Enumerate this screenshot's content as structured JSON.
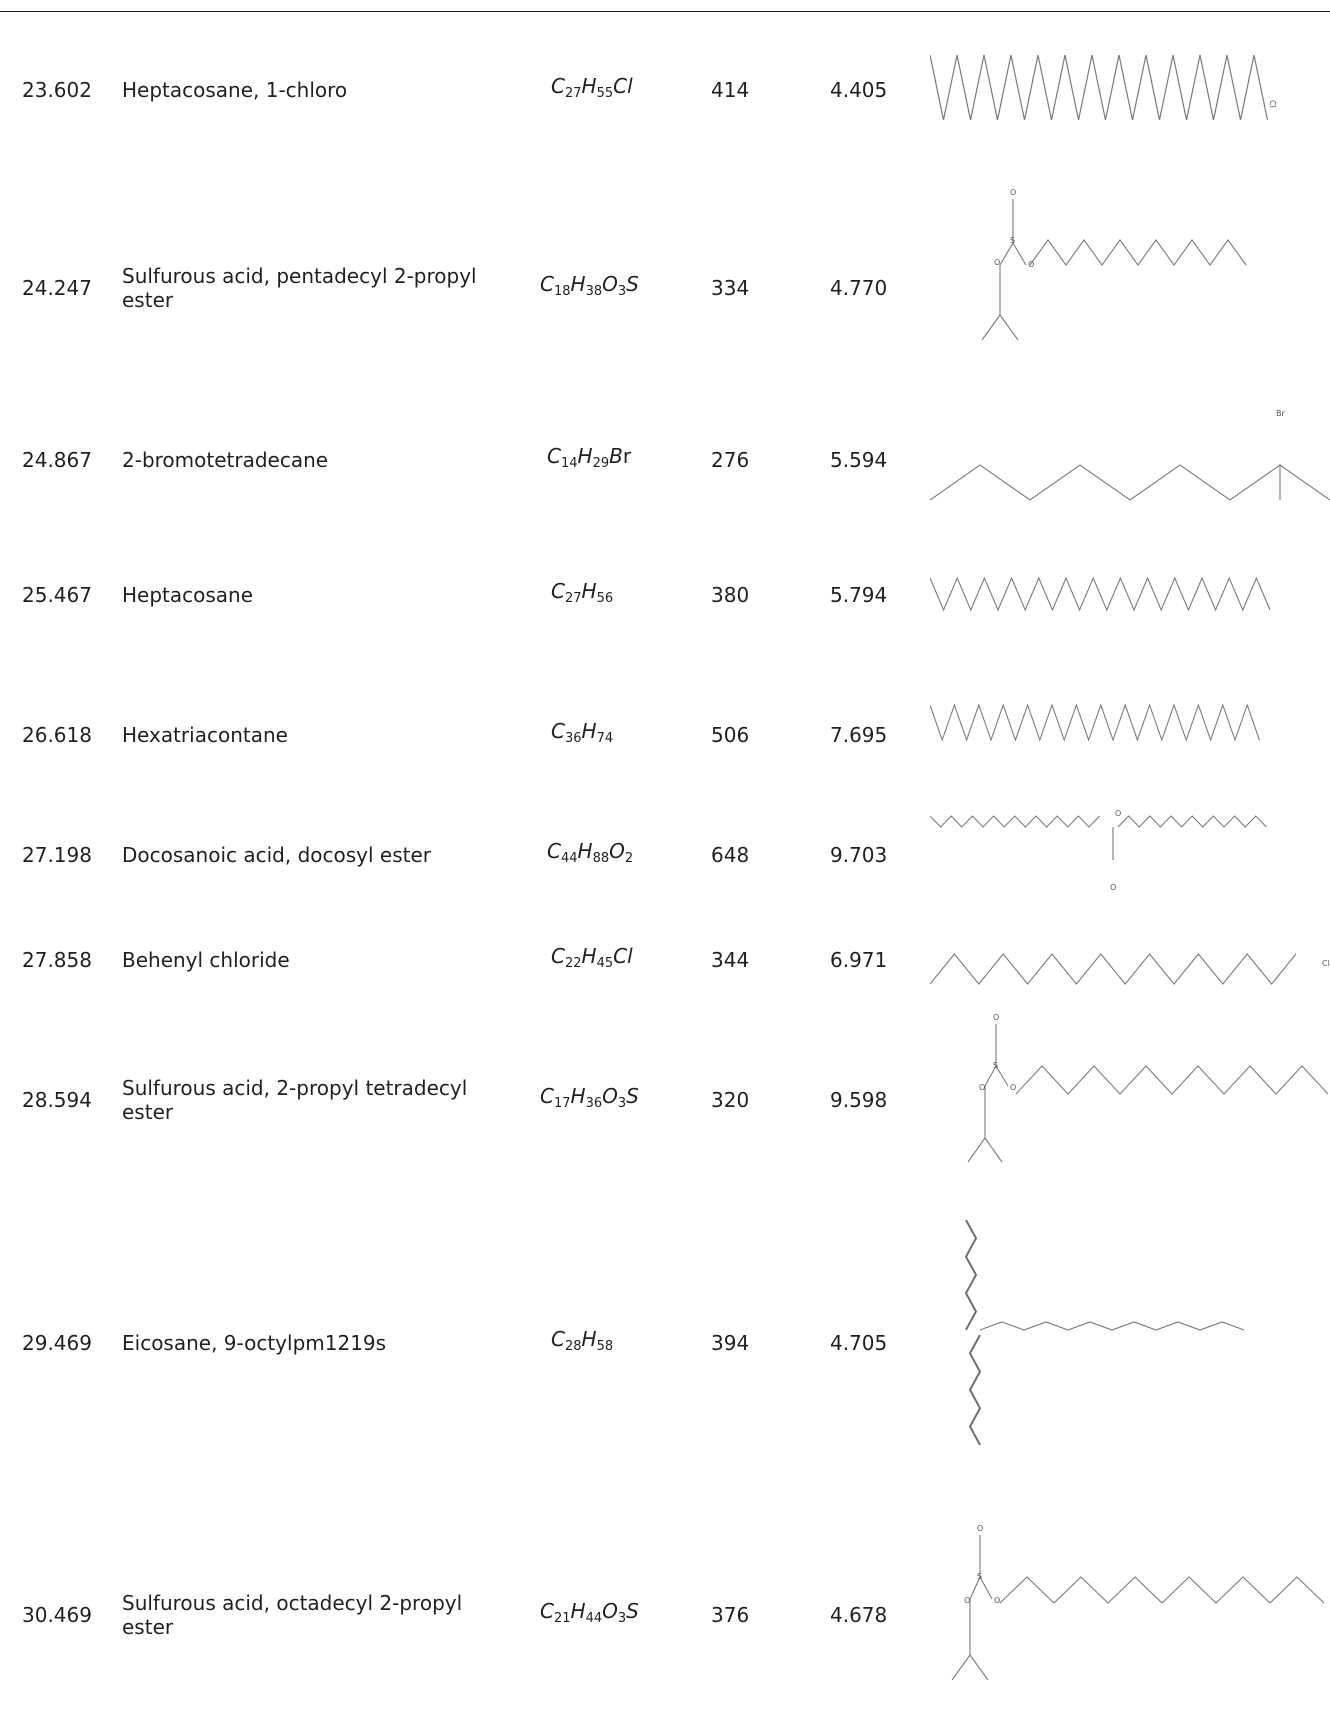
{
  "rows": [
    {
      "rt": "23.602",
      "name": "Heptacosane, 1-chloro",
      "formula": [
        [
          "C",
          "27"
        ],
        [
          "H",
          "55"
        ],
        [
          "Cl",
          ""
        ]
      ],
      "mw": "414",
      "area": "4.405",
      "atoms": [
        "Cl"
      ]
    },
    {
      "rt": "24.247",
      "name": "Sulfurous acid, pentadecyl 2-propyl ester",
      "formula": [
        [
          "C",
          "18"
        ],
        [
          "H",
          "38"
        ],
        [
          "O",
          "3"
        ],
        [
          "S",
          ""
        ]
      ],
      "mw": "334",
      "area": "4.770",
      "atoms": [
        "O",
        "S",
        "O",
        "O"
      ]
    },
    {
      "rt": "24.867",
      "name": "2-bromotetradecane",
      "formula": [
        [
          "C",
          "14"
        ],
        [
          "H",
          "29"
        ],
        [
          "B",
          ""
        ]
      ],
      "formula_tail": "r",
      "mw": "276",
      "area": "5.594",
      "atoms": [
        "Br"
      ]
    },
    {
      "rt": "25.467",
      "name": "Heptacosane",
      "formula": [
        [
          "C",
          "27"
        ],
        [
          "H",
          "56"
        ]
      ],
      "mw": "380",
      "area": "5.794",
      "atoms": []
    },
    {
      "rt": "26.618",
      "name": "Hexatriacontane",
      "formula": [
        [
          "C",
          "36"
        ],
        [
          "H",
          "74"
        ]
      ],
      "mw": "506",
      "area": "7.695",
      "atoms": []
    },
    {
      "rt": "27.198",
      "name": "Docosanoic acid, docosyl ester",
      "formula": [
        [
          "C",
          "44"
        ],
        [
          "H",
          "88"
        ],
        [
          "O",
          "2"
        ]
      ],
      "mw": "648",
      "area": "9.703",
      "atoms": [
        "O",
        "O"
      ]
    },
    {
      "rt": "27.858",
      "name": "Behenyl chloride",
      "formula": [
        [
          "C",
          "22"
        ],
        [
          "H",
          "45"
        ],
        [
          "Cl",
          ""
        ]
      ],
      "mw": "344",
      "area": "6.971",
      "atoms": [
        "Cl"
      ]
    },
    {
      "rt": "28.594",
      "name": "Sulfurous acid, 2-propyl tetradecyl ester",
      "formula": [
        [
          "C",
          "17"
        ],
        [
          "H",
          "36"
        ],
        [
          "O",
          "3"
        ],
        [
          "S",
          ""
        ]
      ],
      "mw": "320",
      "area": "9.598",
      "atoms": [
        "O",
        "S",
        "O",
        "O"
      ]
    },
    {
      "rt": "29.469",
      "name": "Eicosane, 9-octylpm1219s",
      "formula": [
        [
          "C",
          "28"
        ],
        [
          "H",
          "58"
        ]
      ],
      "mw": "394",
      "area": "4.705",
      "atoms": []
    },
    {
      "rt": "30.469",
      "name": "Sulfurous acid, octadecyl 2-propyl ester",
      "formula": [
        [
          "C",
          "21"
        ],
        [
          "H",
          "44"
        ],
        [
          "O",
          "3"
        ],
        [
          "S",
          ""
        ]
      ],
      "mw": "376",
      "area": "4.678",
      "atoms": [
        "O",
        "S",
        "O",
        "O"
      ]
    }
  ]
}
